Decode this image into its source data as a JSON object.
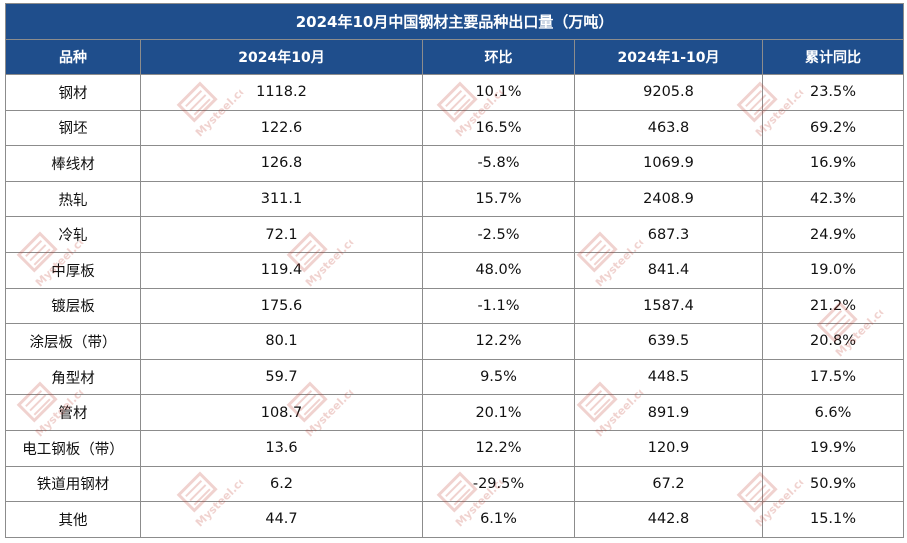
{
  "table": {
    "title": "2024年10月中国钢材主要品种出口量（万吨）",
    "headers": [
      "品种",
      "2024年10月",
      "环比",
      "2024年1-10月",
      "累计同比"
    ],
    "rows": [
      [
        "钢材",
        "1118.2",
        "10.1%",
        "9205.8",
        "23.5%"
      ],
      [
        "钢坯",
        "122.6",
        "16.5%",
        "463.8",
        "69.2%"
      ],
      [
        "棒线材",
        "126.8",
        "-5.8%",
        "1069.9",
        "16.9%"
      ],
      [
        "热轧",
        "311.1",
        "15.7%",
        "2408.9",
        "42.3%"
      ],
      [
        "冷轧",
        "72.1",
        "-2.5%",
        "687.3",
        "24.9%"
      ],
      [
        "中厚板",
        "119.4",
        "48.0%",
        "841.4",
        "19.0%"
      ],
      [
        "镀层板",
        "175.6",
        "-1.1%",
        "1587.4",
        "21.2%"
      ],
      [
        "涂层板（带）",
        "80.1",
        "12.2%",
        "639.5",
        "20.8%"
      ],
      [
        "角型材",
        "59.7",
        "9.5%",
        "448.5",
        "17.5%"
      ],
      [
        "管材",
        "108.7",
        "20.1%",
        "891.9",
        "6.6%"
      ],
      [
        "电工钢板（带）",
        "13.6",
        "12.2%",
        "120.9",
        "19.9%"
      ],
      [
        "铁道用钢材",
        "6.2",
        "-29.5%",
        "67.2",
        "50.9%"
      ],
      [
        "其他",
        "44.7",
        "6.1%",
        "442.8",
        "15.1%"
      ]
    ]
  },
  "watermark": {
    "text": "Mysteel.com",
    "color": "#c0392b"
  },
  "colors": {
    "header_bg": "#1f4e8c",
    "header_text": "#ffffff",
    "link_text": "#3a5ba0"
  }
}
